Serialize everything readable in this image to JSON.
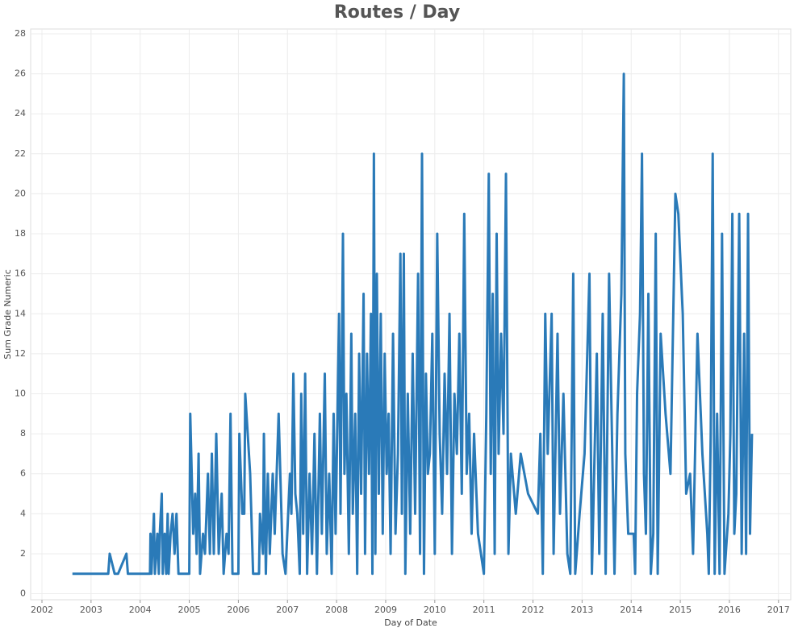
{
  "chart_data": {
    "type": "line",
    "title": "Routes / Day",
    "x_label": "Day of Date",
    "y_label": "Sum Grade Numeric",
    "xlim": [
      2001.77,
      2017.25
    ],
    "ylim": [
      -0.3,
      28.24
    ],
    "xticks": [
      2002,
      2003,
      2004,
      2005,
      2006,
      2007,
      2008,
      2009,
      2010,
      2011,
      2012,
      2013,
      2014,
      2015,
      2016,
      2017
    ],
    "yticks": [
      0,
      2,
      4,
      6,
      8,
      10,
      12,
      14,
      16,
      18,
      20,
      22,
      24,
      26,
      28
    ],
    "grid": true,
    "x": [
      2002.62,
      2003.35,
      2003.38,
      2003.48,
      2003.55,
      2003.72,
      2003.75,
      2004.2,
      2004.21,
      2004.23,
      2004.28,
      2004.3,
      2004.35,
      2004.38,
      2004.4,
      2004.44,
      2004.46,
      2004.5,
      2004.53,
      2004.56,
      2004.58,
      2004.62,
      2004.66,
      2004.7,
      2004.74,
      2004.78,
      2005.0,
      2005.02,
      2005.08,
      2005.12,
      2005.15,
      2005.19,
      2005.22,
      2005.28,
      2005.32,
      2005.38,
      2005.42,
      2005.46,
      2005.5,
      2005.55,
      2005.6,
      2005.66,
      2005.7,
      2005.76,
      2005.8,
      2005.84,
      2005.88,
      2006.0,
      2006.02,
      2006.08,
      2006.12,
      2006.14,
      2006.24,
      2006.3,
      2006.42,
      2006.44,
      2006.5,
      2006.52,
      2006.56,
      2006.6,
      2006.64,
      2006.7,
      2006.74,
      2006.78,
      2006.82,
      2006.9,
      2006.96,
      2007.05,
      2007.08,
      2007.12,
      2007.16,
      2007.2,
      2007.25,
      2007.28,
      2007.32,
      2007.36,
      2007.4,
      2007.45,
      2007.5,
      2007.55,
      2007.6,
      2007.66,
      2007.7,
      2007.76,
      2007.8,
      2007.85,
      2007.9,
      2007.94,
      2007.98,
      2008.05,
      2008.08,
      2008.13,
      2008.16,
      2008.2,
      2008.25,
      2008.3,
      2008.33,
      2008.38,
      2008.42,
      2008.46,
      2008.5,
      2008.55,
      2008.58,
      2008.62,
      2008.66,
      2008.7,
      2008.73,
      2008.76,
      2008.79,
      2008.82,
      2008.86,
      2008.9,
      2008.94,
      2008.98,
      2009.02,
      2009.06,
      2009.1,
      2009.15,
      2009.2,
      2009.25,
      2009.3,
      2009.33,
      2009.37,
      2009.4,
      2009.45,
      2009.5,
      2009.55,
      2009.6,
      2009.66,
      2009.7,
      2009.74,
      2009.78,
      2009.82,
      2009.86,
      2009.9,
      2009.95,
      2010.0,
      2010.05,
      2010.1,
      2010.15,
      2010.2,
      2010.25,
      2010.3,
      2010.35,
      2010.4,
      2010.45,
      2010.5,
      2010.55,
      2010.6,
      2010.65,
      2010.7,
      2010.75,
      2010.8,
      2010.88,
      2011.0,
      2011.05,
      2011.1,
      2011.14,
      2011.18,
      2011.22,
      2011.26,
      2011.3,
      2011.35,
      2011.4,
      2011.45,
      2011.5,
      2011.55,
      2011.65,
      2011.75,
      2011.9,
      2012.1,
      2012.15,
      2012.2,
      2012.25,
      2012.3,
      2012.38,
      2012.42,
      2012.5,
      2012.55,
      2012.62,
      2012.7,
      2012.76,
      2012.82,
      2012.86,
      2012.95,
      2013.05,
      2013.15,
      2013.2,
      2013.3,
      2013.35,
      2013.42,
      2013.48,
      2013.55,
      2013.6,
      2013.66,
      2013.72,
      2013.8,
      2013.85,
      2013.88,
      2013.94,
      2014.05,
      2014.08,
      2014.12,
      2014.18,
      2014.22,
      2014.26,
      2014.3,
      2014.35,
      2014.4,
      2014.45,
      2014.5,
      2014.54,
      2014.6,
      2014.7,
      2014.8,
      2014.9,
      2014.96,
      2015.05,
      2015.12,
      2015.2,
      2015.26,
      2015.35,
      2015.45,
      2015.55,
      2015.58,
      2015.62,
      2015.66,
      2015.7,
      2015.75,
      2015.8,
      2015.85,
      2015.9,
      2015.98,
      2016.02,
      2016.06,
      2016.1,
      2016.14,
      2016.2,
      2016.25,
      2016.3,
      2016.34,
      2016.38,
      2016.42,
      2016.46
    ],
    "series": [
      {
        "color": "#2a7ab8",
        "values": [
          1,
          1,
          2,
          1,
          1,
          2,
          1,
          1,
          3,
          1,
          4,
          1,
          3,
          1,
          3,
          5,
          1,
          3,
          1,
          4,
          1,
          3,
          4,
          2,
          4,
          1,
          1,
          9,
          3,
          5,
          2,
          7,
          1,
          3,
          2,
          6,
          2,
          7,
          2,
          8,
          2,
          5,
          1,
          3,
          2,
          9,
          1,
          1,
          8,
          4,
          4,
          10,
          6,
          1,
          1,
          4,
          2,
          8,
          1,
          6,
          2,
          6,
          3,
          6,
          9,
          2,
          1,
          6,
          4,
          11,
          5,
          4,
          1,
          10,
          3,
          11,
          1,
          6,
          2,
          8,
          1,
          9,
          3,
          11,
          2,
          6,
          1,
          9,
          3,
          14,
          4,
          18,
          6,
          10,
          2,
          13,
          4,
          9,
          1,
          12,
          5,
          15,
          2,
          12,
          6,
          14,
          1,
          22,
          2,
          16,
          5,
          14,
          3,
          12,
          6,
          9,
          2,
          13,
          3,
          7,
          17,
          4,
          17,
          1,
          10,
          3,
          12,
          4,
          16,
          2,
          22,
          1,
          11,
          6,
          7,
          13,
          2,
          18,
          8,
          4,
          11,
          6,
          14,
          2,
          10,
          7,
          13,
          5,
          19,
          6,
          9,
          3,
          8,
          3,
          1,
          9,
          21,
          6,
          15,
          2,
          18,
          7,
          13,
          8,
          21,
          2,
          7,
          4,
          7,
          5,
          4,
          8,
          1,
          14,
          7,
          14,
          2,
          13,
          4,
          10,
          2,
          1,
          16,
          1,
          4,
          7,
          16,
          1,
          12,
          2,
          14,
          1,
          16,
          9,
          1,
          9,
          15,
          26,
          7,
          3,
          3,
          1,
          10,
          14,
          22,
          6,
          3,
          15,
          1,
          3,
          18,
          1,
          13,
          9,
          6,
          20,
          19,
          14,
          5,
          6,
          2,
          13,
          7,
          3,
          1,
          8,
          22,
          1,
          9,
          1,
          18,
          1,
          4,
          8,
          19,
          3,
          5,
          19,
          2,
          13,
          2,
          19,
          3,
          8
        ]
      }
    ]
  }
}
